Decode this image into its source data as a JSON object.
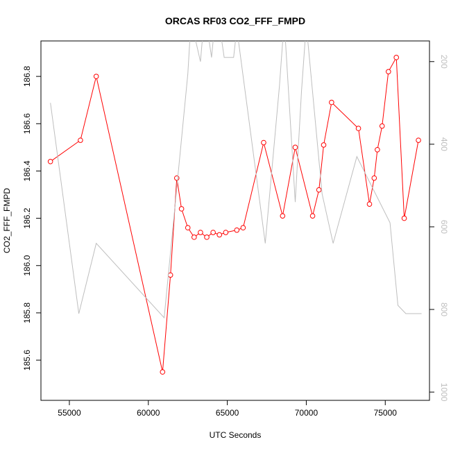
{
  "chart_data": {
    "type": "line",
    "title": "ORCAS RF03 CO2_FFF_FMPD",
    "xlabel": "UTC Seconds",
    "ylabel": "CO2_FFF_FMPD",
    "xlim": [
      53200,
      77800
    ],
    "ylim": [
      185.43,
      186.95
    ],
    "x_ticks": [
      55000,
      60000,
      65000,
      70000,
      75000
    ],
    "x_tick_labels": [
      "55000",
      "60000",
      "65000",
      "70000",
      "75000"
    ],
    "y_ticks": [
      185.6,
      185.8,
      186.0,
      186.2,
      186.4,
      186.6,
      186.8
    ],
    "y_tick_labels": [
      "185.6",
      "185.8",
      "186.0",
      "186.2",
      "186.4",
      "186.6",
      "186.8"
    ],
    "y2_ticks": [
      200,
      400,
      600,
      800,
      1000
    ],
    "y2_tick_labels": [
      "200",
      "400",
      "600",
      "800",
      "1000"
    ],
    "y2lim": [
      1020,
      150
    ],
    "series": [
      {
        "axis": "left",
        "color": "#ff0000",
        "marker": "circle-open",
        "x": [
          53800,
          55700,
          56700,
          60900,
          61400,
          61800,
          62100,
          62500,
          62900,
          63300,
          63700,
          64100,
          64500,
          64900,
          65600,
          66000,
          67300,
          68500,
          69300,
          70400,
          70800,
          71100,
          71600,
          73300,
          74000,
          74300,
          74500,
          74800,
          75200,
          75700,
          76200,
          77100
        ],
        "y": [
          186.44,
          186.53,
          186.8,
          185.55,
          185.96,
          186.37,
          186.24,
          186.16,
          186.12,
          186.14,
          186.12,
          186.14,
          186.13,
          186.14,
          186.15,
          186.16,
          186.52,
          186.21,
          186.5,
          186.21,
          186.32,
          186.51,
          186.69,
          186.58,
          186.26,
          186.37,
          186.49,
          186.59,
          186.82,
          186.88,
          186.2,
          186.53
        ]
      },
      {
        "axis": "right",
        "color": "#bebebe",
        "x": [
          53800,
          55600,
          56700,
          61000,
          62500,
          62700,
          63300,
          63500,
          63700,
          64000,
          64200,
          64500,
          64800,
          65400,
          65600,
          67400,
          68300,
          68600,
          69300,
          69700,
          70000,
          71000,
          71700,
          73200,
          75300,
          75800,
          76300,
          77300
        ],
        "y": [
          300,
          810,
          640,
          820,
          230,
          100,
          200,
          110,
          110,
          190,
          110,
          110,
          190,
          190,
          120,
          640,
          260,
          100,
          540,
          270,
          110,
          520,
          640,
          430,
          590,
          790,
          810,
          810
        ]
      }
    ],
    "grid": false,
    "legend": "none"
  }
}
